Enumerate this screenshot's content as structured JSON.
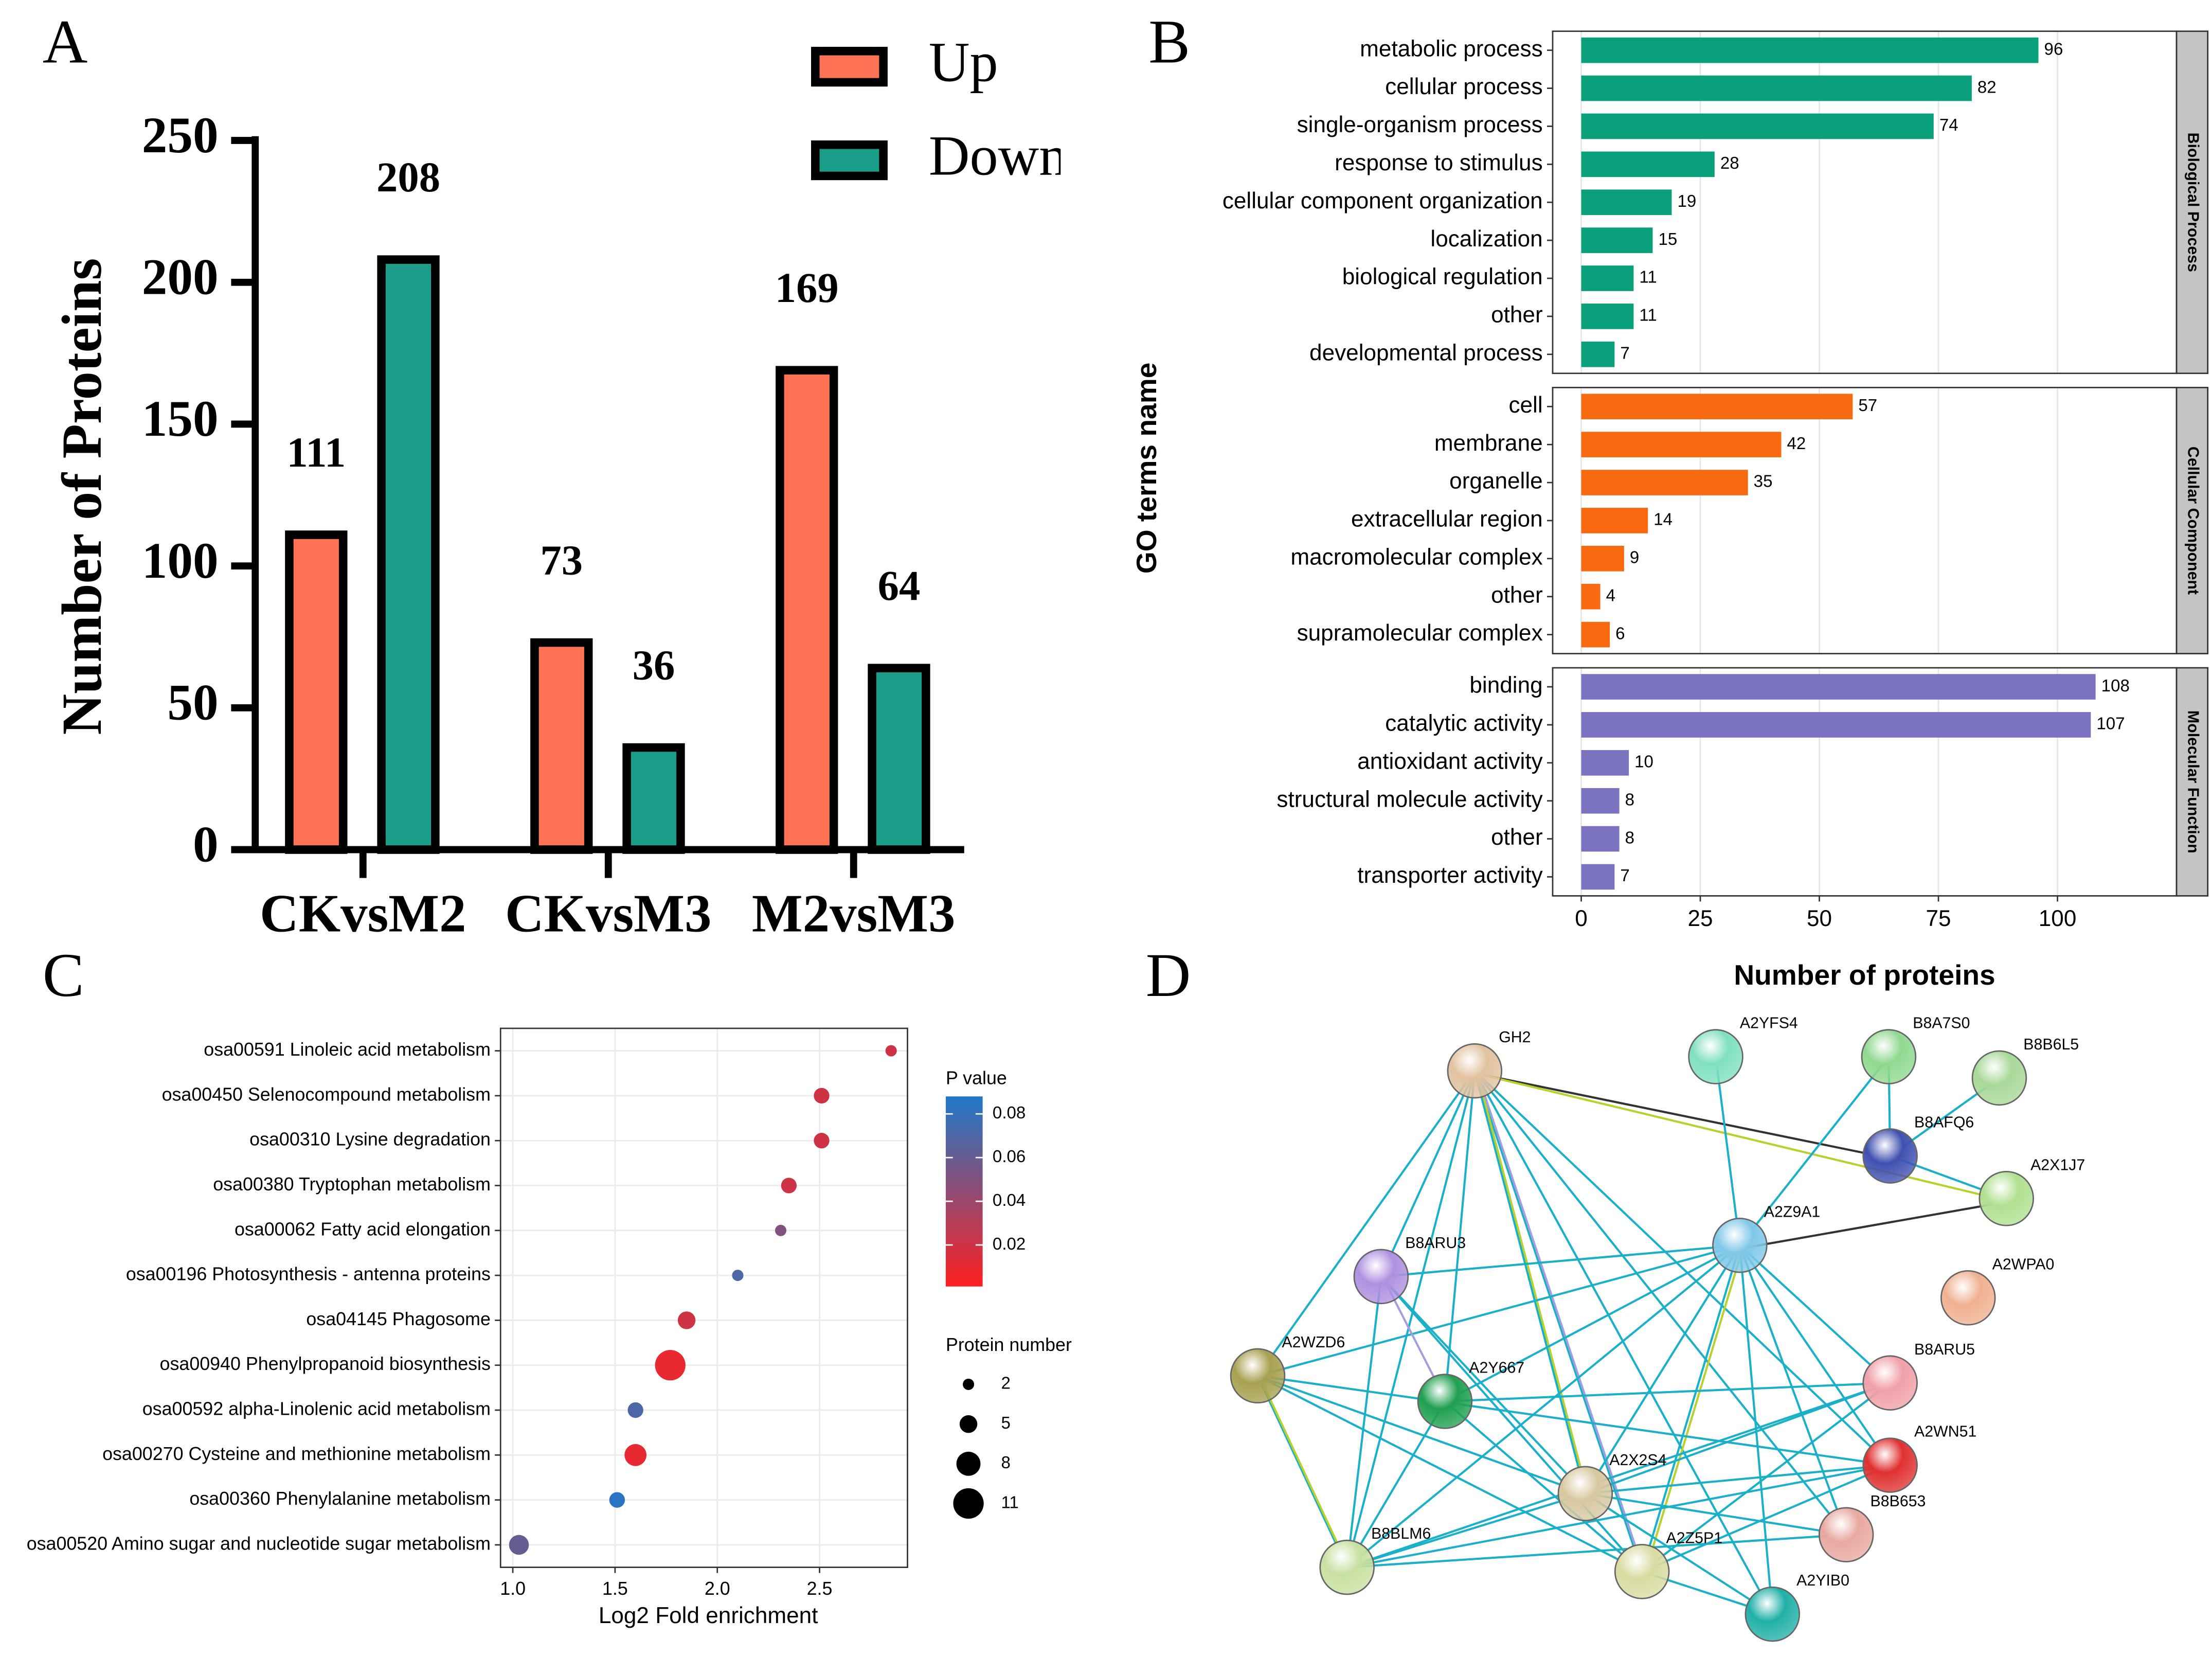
{
  "chart_data": [
    {
      "panel": "A",
      "type": "bar",
      "ylabel": "Number of Proteins",
      "categories": [
        "CKvsM2",
        "CKvsM3",
        "M2vsM3"
      ],
      "series": [
        {
          "name": "Up",
          "color": "#ff7256",
          "values": [
            111,
            73,
            169
          ]
        },
        {
          "name": "Down",
          "color": "#1a9e8a",
          "values": [
            208,
            36,
            64
          ]
        }
      ],
      "ylim": [
        0,
        250
      ],
      "yticks": [
        0,
        50,
        100,
        150,
        200,
        250
      ],
      "legend": "top-right"
    },
    {
      "panel": "B",
      "type": "bar",
      "orientation": "horizontal",
      "xlabel": "Number of proteins",
      "ylabel": "GO terms name",
      "xlim": [
        -6,
        125
      ],
      "xticks": [
        0,
        25,
        50,
        75,
        100
      ],
      "grid": true,
      "facets": [
        {
          "name": "Biological Process",
          "color": "#0aa07b",
          "categories": [
            "metabolic process",
            "cellular process",
            "single-organism process",
            "response to stimulus",
            "cellular component organization",
            "localization",
            "biological regulation",
            "other",
            "developmental process"
          ],
          "values": [
            96,
            82,
            74,
            28,
            19,
            15,
            11,
            11,
            7
          ]
        },
        {
          "name": "Cellular Component",
          "color": "#f96a10",
          "categories": [
            "cell",
            "membrane",
            "organelle",
            "extracellular region",
            "macromolecular complex",
            "other",
            "supramolecular complex"
          ],
          "values": [
            57,
            42,
            35,
            14,
            9,
            4,
            6
          ]
        },
        {
          "name": "Molecular Function",
          "color": "#7b73c0",
          "categories": [
            "binding",
            "catalytic activity",
            "antioxidant activity",
            "structural molecule activity",
            "other",
            "transporter activity"
          ],
          "values": [
            108,
            107,
            10,
            8,
            8,
            7
          ]
        }
      ]
    },
    {
      "panel": "C",
      "type": "bubble",
      "xlabel": "Log2 Fold enrichment",
      "categories": [
        "osa00591 Linoleic acid metabolism",
        "osa00450 Selenocompound metabolism",
        "osa00310 Lysine degradation",
        "osa00380 Tryptophan metabolism",
        "osa00062 Fatty acid elongation",
        "osa00196 Photosynthesis - antenna proteins",
        "osa04145 Phagosome",
        "osa00940 Phenylpropanoid biosynthesis",
        "osa00592 alpha-Linolenic acid metabolism",
        "osa00270 Cysteine and methionine metabolism",
        "osa00360 Phenylalanine metabolism",
        "osa00520 Amino sugar and nucleotide sugar metabolism"
      ],
      "x": [
        2.85,
        2.51,
        2.51,
        2.35,
        2.31,
        2.1,
        1.85,
        1.77,
        1.6,
        1.6,
        1.51,
        1.03
      ],
      "sizes": [
        2,
        4,
        4,
        4,
        2,
        2,
        5,
        11,
        4,
        7,
        4,
        6
      ],
      "pvalues": [
        0.02,
        0.02,
        0.02,
        0.02,
        0.05,
        0.07,
        0.02,
        0.01,
        0.07,
        0.01,
        0.085,
        0.06
      ],
      "xlim": [
        0.94,
        2.93
      ],
      "xticks": [
        {
          "value": 1,
          "label": "1.0"
        },
        {
          "value": 1.5,
          "label": "1.5"
        },
        {
          "value": 2,
          "label": "2.0"
        },
        {
          "value": 2.5,
          "label": "2.5"
        }
      ],
      "grid": true,
      "color_legend": {
        "title": "P value",
        "lim": [
          0.001,
          0.088
        ],
        "ticks": [
          0.02,
          0.04,
          0.06,
          0.08
        ],
        "low_color": "#ff2020",
        "high_color": "#1f78c8"
      },
      "size_legend": {
        "title": "Protein number",
        "values": [
          2,
          5,
          8,
          11
        ]
      }
    }
  ],
  "network": {
    "panel": "D",
    "nodes": [
      {
        "label": "GH2",
        "color": "#e2c2a0"
      },
      {
        "label": "A2YFS4",
        "color": "#7fe0c0"
      },
      {
        "label": "B8A7S0",
        "color": "#90d890"
      },
      {
        "label": "B8B6L5",
        "color": "#a8d898"
      },
      {
        "label": "B8AFQ6",
        "color": "#4050b0"
      },
      {
        "label": "A2X1J7",
        "color": "#b0e090"
      },
      {
        "label": "A2Z9A1",
        "color": "#80c8e8"
      },
      {
        "label": "A2WPA0",
        "color": "#f0b090"
      },
      {
        "label": "B8ARU3",
        "color": "#b090e0"
      },
      {
        "label": "A2WZD6",
        "color": "#a8a050"
      },
      {
        "label": "A2Y667",
        "color": "#20a050"
      },
      {
        "label": "B8ARU5",
        "color": "#f0a0a8"
      },
      {
        "label": "A2WN51",
        "color": "#e03030"
      },
      {
        "label": "A2X2S4",
        "color": "#d8c8a0"
      },
      {
        "label": "B8B653",
        "color": "#e8a8a0"
      },
      {
        "label": "B8BLM6",
        "color": "#c8e0a0"
      },
      {
        "label": "A2Z5P1",
        "color": "#d8dca0"
      },
      {
        "label": "A2YIB0",
        "color": "#20b0a8"
      }
    ]
  }
}
